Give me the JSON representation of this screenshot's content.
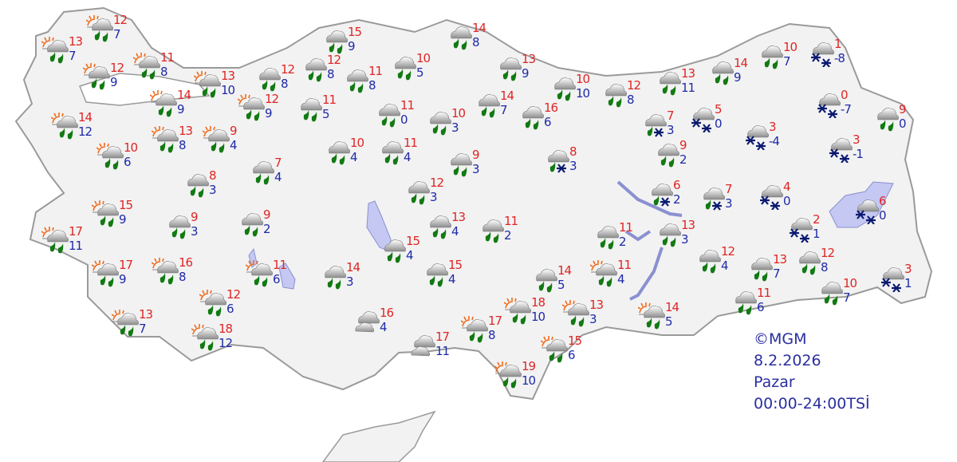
{
  "colors": {
    "land": "#f2f2f2",
    "border": "#9a9a9a",
    "water": "#c4c8f2",
    "high": "#e02525",
    "low": "#1e2aa8",
    "rain": "#127a12",
    "snow": "#0a1a70",
    "sun": "#f06a1a"
  },
  "legend": {
    "copyright": "©MGM",
    "date": "8.2.2026",
    "day": "Pazar",
    "period": "00:00-24:00TSİ"
  },
  "stations": [
    {
      "icon": "partly-cloudy-rain",
      "high": "13",
      "low": "7"
    },
    {
      "icon": "partly-cloudy-rain",
      "high": "12",
      "low": "7"
    },
    {
      "icon": "partly-cloudy-rain",
      "high": "12",
      "low": "9"
    },
    {
      "icon": "partly-cloudy-rain",
      "high": "11",
      "low": "8"
    },
    {
      "icon": "partly-cloudy-rain",
      "high": "14",
      "low": "12"
    },
    {
      "icon": "partly-cloudy-rain",
      "high": "14",
      "low": "9"
    },
    {
      "icon": "partly-cloudy-rain",
      "high": "13",
      "low": "10"
    },
    {
      "icon": "partly-cloudy-rain",
      "high": "12",
      "low": "9"
    },
    {
      "icon": "rain",
      "high": "12",
      "low": "8"
    },
    {
      "icon": "rain",
      "high": "12",
      "low": "8"
    },
    {
      "icon": "rain",
      "high": "15",
      "low": "9"
    },
    {
      "icon": "rain",
      "high": "14",
      "low": "8"
    },
    {
      "icon": "rain",
      "high": "11",
      "low": "8"
    },
    {
      "icon": "rain",
      "high": "10",
      "low": "5"
    },
    {
      "icon": "rain",
      "high": "11",
      "low": "5"
    },
    {
      "icon": "rain",
      "high": "11",
      "low": "0"
    },
    {
      "icon": "rain",
      "high": "10",
      "low": "3"
    },
    {
      "icon": "partly-cloudy-rain",
      "high": "10",
      "low": "6"
    },
    {
      "icon": "partly-cloudy-rain",
      "high": "13",
      "low": "8"
    },
    {
      "icon": "partly-cloudy-rain",
      "high": "9",
      "low": "4"
    },
    {
      "icon": "rain",
      "high": "8",
      "low": "3"
    },
    {
      "icon": "rain",
      "high": "7",
      "low": "4"
    },
    {
      "icon": "rain",
      "high": "10",
      "low": "4"
    },
    {
      "icon": "rain",
      "high": "11",
      "low": "4"
    },
    {
      "icon": "rain",
      "high": "9",
      "low": "3"
    },
    {
      "icon": "rain",
      "high": "12",
      "low": "3"
    },
    {
      "icon": "rain",
      "high": "13",
      "low": "9"
    },
    {
      "icon": "rain",
      "high": "10",
      "low": "10"
    },
    {
      "icon": "rain",
      "high": "12",
      "low": "8"
    },
    {
      "icon": "rain",
      "high": "13",
      "low": "11"
    },
    {
      "icon": "rain",
      "high": "14",
      "low": "9"
    },
    {
      "icon": "rain",
      "high": "10",
      "low": "7"
    },
    {
      "icon": "snow",
      "high": "1",
      "low": "-8"
    },
    {
      "icon": "rain",
      "high": "14",
      "low": "7"
    },
    {
      "icon": "rain",
      "high": "16",
      "low": "6"
    },
    {
      "icon": "sleet",
      "high": "7",
      "low": "3"
    },
    {
      "icon": "snow",
      "high": "5",
      "low": "0"
    },
    {
      "icon": "snow",
      "high": "0",
      "low": "-7"
    },
    {
      "icon": "rain",
      "high": "9",
      "low": "0"
    },
    {
      "icon": "snow",
      "high": "3",
      "low": "-4"
    },
    {
      "icon": "snow",
      "high": "3",
      "low": "-1"
    },
    {
      "icon": "sleet",
      "high": "8",
      "low": "3"
    },
    {
      "icon": "rain",
      "high": "9",
      "low": "2"
    },
    {
      "icon": "sleet",
      "high": "6",
      "low": "2"
    },
    {
      "icon": "sleet",
      "high": "7",
      "low": "3"
    },
    {
      "icon": "snow",
      "high": "4",
      "low": "0"
    },
    {
      "icon": "snow",
      "high": "6",
      "low": "0"
    },
    {
      "icon": "snow",
      "high": "2",
      "low": "1"
    },
    {
      "icon": "partly-cloudy-rain",
      "high": "15",
      "low": "9"
    },
    {
      "icon": "partly-cloudy-rain",
      "high": "17",
      "low": "11"
    },
    {
      "icon": "rain",
      "high": "9",
      "low": "3"
    },
    {
      "icon": "rain",
      "high": "9",
      "low": "2"
    },
    {
      "icon": "partly-cloudy-rain",
      "high": "17",
      "low": "9"
    },
    {
      "icon": "partly-cloudy-rain",
      "high": "16",
      "low": "8"
    },
    {
      "icon": "partly-cloudy-rain",
      "high": "11",
      "low": "6"
    },
    {
      "icon": "partly-cloudy-rain",
      "high": "12",
      "low": "6"
    },
    {
      "icon": "partly-cloudy-rain",
      "high": "13",
      "low": "7"
    },
    {
      "icon": "partly-cloudy-rain",
      "high": "18",
      "low": "12"
    },
    {
      "icon": "rain",
      "high": "14",
      "low": "3"
    },
    {
      "icon": "cloudy",
      "high": "16",
      "low": "4"
    },
    {
      "icon": "rain",
      "high": "15",
      "low": "4"
    },
    {
      "icon": "rain",
      "high": "13",
      "low": "4"
    },
    {
      "icon": "rain",
      "high": "11",
      "low": "2"
    },
    {
      "icon": "rain",
      "high": "15",
      "low": "4"
    },
    {
      "icon": "cloudy",
      "high": "17",
      "low": "11"
    },
    {
      "icon": "partly-cloudy-rain",
      "high": "17",
      "low": "8"
    },
    {
      "icon": "partly-cloudy-rain",
      "high": "19",
      "low": "10"
    },
    {
      "icon": "partly-cloudy-rain",
      "high": "18",
      "low": "10"
    },
    {
      "icon": "partly-cloudy-rain",
      "high": "15",
      "low": "6"
    },
    {
      "icon": "partly-cloudy-rain",
      "high": "13",
      "low": "3"
    },
    {
      "icon": "rain",
      "high": "14",
      "low": "5"
    },
    {
      "icon": "rain",
      "high": "11",
      "low": "2"
    },
    {
      "icon": "rain",
      "high": "13",
      "low": "3"
    },
    {
      "icon": "partly-cloudy-rain",
      "high": "11",
      "low": "4"
    },
    {
      "icon": "partly-cloudy-rain",
      "high": "14",
      "low": "5"
    },
    {
      "icon": "rain",
      "high": "12",
      "low": "4"
    },
    {
      "icon": "rain",
      "high": "13",
      "low": "7"
    },
    {
      "icon": "rain",
      "high": "12",
      "low": "8"
    },
    {
      "icon": "rain",
      "high": "11",
      "low": "6"
    },
    {
      "icon": "rain",
      "high": "10",
      "low": "7"
    },
    {
      "icon": "snow",
      "high": "3",
      "low": "1"
    }
  ]
}
